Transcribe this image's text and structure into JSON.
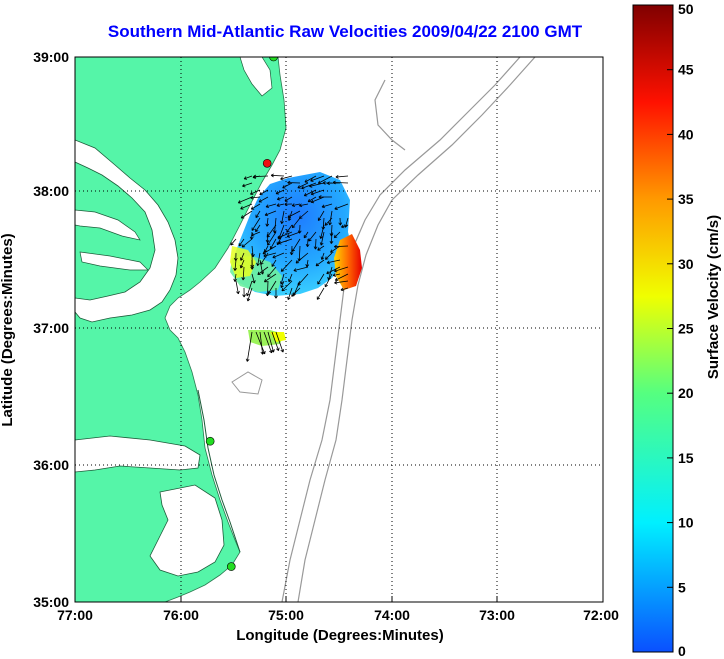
{
  "title": "Southern Mid-Atlantic Raw Velocities 2009/04/22 2100 GMT",
  "x_axis": {
    "label": "Longitude (Degrees:Minutes)",
    "ticks": [
      "77:00",
      "76:00",
      "75:00",
      "74:00",
      "73:00",
      "72:00"
    ]
  },
  "y_axis": {
    "label": "Latitude (Degrees:Minutes)",
    "ticks": [
      "39:00",
      "38:00",
      "37:00",
      "36:00",
      "35:00"
    ]
  },
  "colorbar": {
    "label": "Surface Velocity (cm/s)",
    "ticks": [
      "50",
      "45",
      "40",
      "35",
      "30",
      "25",
      "20",
      "15",
      "10",
      "5",
      "0"
    ],
    "min": 0,
    "max": 50
  },
  "colors": {
    "land": "#55f5a8",
    "water": "#ffffff",
    "bathymetry": "#999999",
    "grid": "#000000",
    "title": "#0000ff",
    "site_active": "#22dd22",
    "site_alert": "#ee1111"
  },
  "chart_data": {
    "type": "heatmap",
    "xlim": [
      -77.0,
      -72.0
    ],
    "ylim": [
      35.0,
      39.0
    ],
    "grid_lines": true,
    "stations": [
      {
        "lon": -75.12,
        "lat": 39.0,
        "status": "active"
      },
      {
        "lon": -75.18,
        "lat": 38.22,
        "status": "alert"
      },
      {
        "lon": -75.72,
        "lat": 36.18,
        "status": "active"
      },
      {
        "lon": -75.52,
        "lat": 35.26,
        "status": "active"
      }
    ]
  }
}
